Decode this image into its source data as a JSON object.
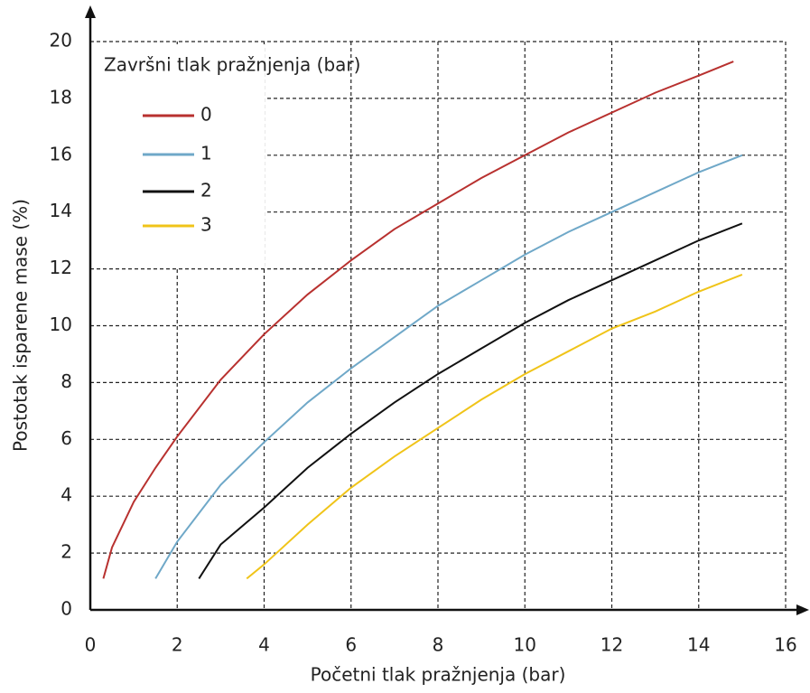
{
  "chart_data": {
    "type": "line",
    "xlabel": "Početni tlak pražnjenja (bar)",
    "ylabel": "Postotak isparene mase (%)",
    "legend_title": "Završni tlak pražnjenja (bar)",
    "legend": "upper left",
    "grid": true,
    "xlim": [
      0,
      16
    ],
    "xticks": [
      0,
      2,
      4,
      6,
      8,
      10,
      12,
      14,
      16
    ],
    "ylim": [
      0,
      20
    ],
    "yticks": [
      0,
      2,
      4,
      6,
      8,
      10,
      12,
      14,
      16,
      18,
      20
    ],
    "series": [
      {
        "name": "0",
        "color": "#b8312f",
        "x": [
          0.3,
          0.5,
          1,
          1.5,
          2,
          3,
          4,
          5,
          6,
          7,
          8,
          9,
          10,
          11,
          12,
          13,
          14,
          14.8
        ],
        "values": [
          1.1,
          2.2,
          3.8,
          5.0,
          6.1,
          8.1,
          9.7,
          11.1,
          12.3,
          13.4,
          14.3,
          15.2,
          16.0,
          16.8,
          17.5,
          18.2,
          18.8,
          19.3
        ]
      },
      {
        "name": "1",
        "color": "#6fa8c8",
        "x": [
          1.5,
          2,
          3,
          4,
          5,
          6,
          7,
          8,
          9,
          10,
          11,
          12,
          13,
          14,
          15
        ],
        "values": [
          1.1,
          2.4,
          4.4,
          5.9,
          7.3,
          8.5,
          9.6,
          10.7,
          11.6,
          12.5,
          13.3,
          14.0,
          14.7,
          15.4,
          16.0
        ]
      },
      {
        "name": "2",
        "color": "#111111",
        "x": [
          2.5,
          3,
          4,
          5,
          6,
          7,
          8,
          9,
          10,
          11,
          12,
          13,
          14,
          15
        ],
        "values": [
          1.1,
          2.3,
          3.6,
          5.0,
          6.2,
          7.3,
          8.3,
          9.2,
          10.1,
          10.9,
          11.6,
          12.3,
          13.0,
          13.6
        ]
      },
      {
        "name": "3",
        "color": "#f0c419",
        "x": [
          3.6,
          4,
          5,
          6,
          7,
          8,
          9,
          10,
          11,
          12,
          13,
          14,
          15
        ],
        "values": [
          1.1,
          1.6,
          3.0,
          4.3,
          5.4,
          6.4,
          7.4,
          8.3,
          9.1,
          9.9,
          10.5,
          11.2,
          11.8
        ]
      }
    ]
  }
}
